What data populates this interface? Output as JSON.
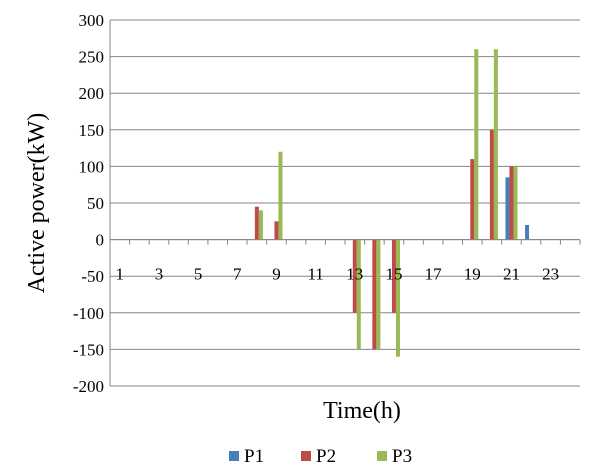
{
  "chart_data": {
    "type": "bar",
    "title": "",
    "xlabel": "Time(h)",
    "ylabel": "Active power(kW)",
    "ylim": [
      -200,
      300
    ],
    "yticks": [
      300,
      250,
      200,
      150,
      100,
      50,
      0,
      -50,
      -100,
      -150,
      -200
    ],
    "x": [
      1,
      2,
      3,
      4,
      5,
      6,
      7,
      8,
      9,
      10,
      11,
      12,
      13,
      14,
      15,
      16,
      17,
      18,
      19,
      20,
      21,
      22,
      23,
      24
    ],
    "xtick_labels": [
      "1",
      "3",
      "5",
      "7",
      "9",
      "11",
      "13",
      "15",
      "17",
      "19",
      "21",
      "23"
    ],
    "grid": true,
    "legend_position": "bottom",
    "series": [
      {
        "name": "P1",
        "color": "#4a7ebb",
        "values": [
          0,
          0,
          0,
          0,
          0,
          0,
          0,
          0,
          0,
          0,
          0,
          0,
          0,
          0,
          0,
          0,
          0,
          0,
          0,
          0,
          85,
          20,
          0,
          0
        ]
      },
      {
        "name": "P2",
        "color": "#be4b48",
        "values": [
          0,
          0,
          0,
          0,
          0,
          0,
          0,
          45,
          25,
          0,
          0,
          0,
          -100,
          -150,
          -100,
          0,
          0,
          0,
          110,
          150,
          100,
          0,
          0,
          0
        ]
      },
      {
        "name": "P3",
        "color": "#98b954",
        "values": [
          0,
          0,
          0,
          0,
          0,
          0,
          0,
          40,
          120,
          0,
          0,
          0,
          -150,
          -150,
          -160,
          0,
          0,
          0,
          260,
          260,
          100,
          0,
          0,
          0
        ]
      }
    ]
  }
}
